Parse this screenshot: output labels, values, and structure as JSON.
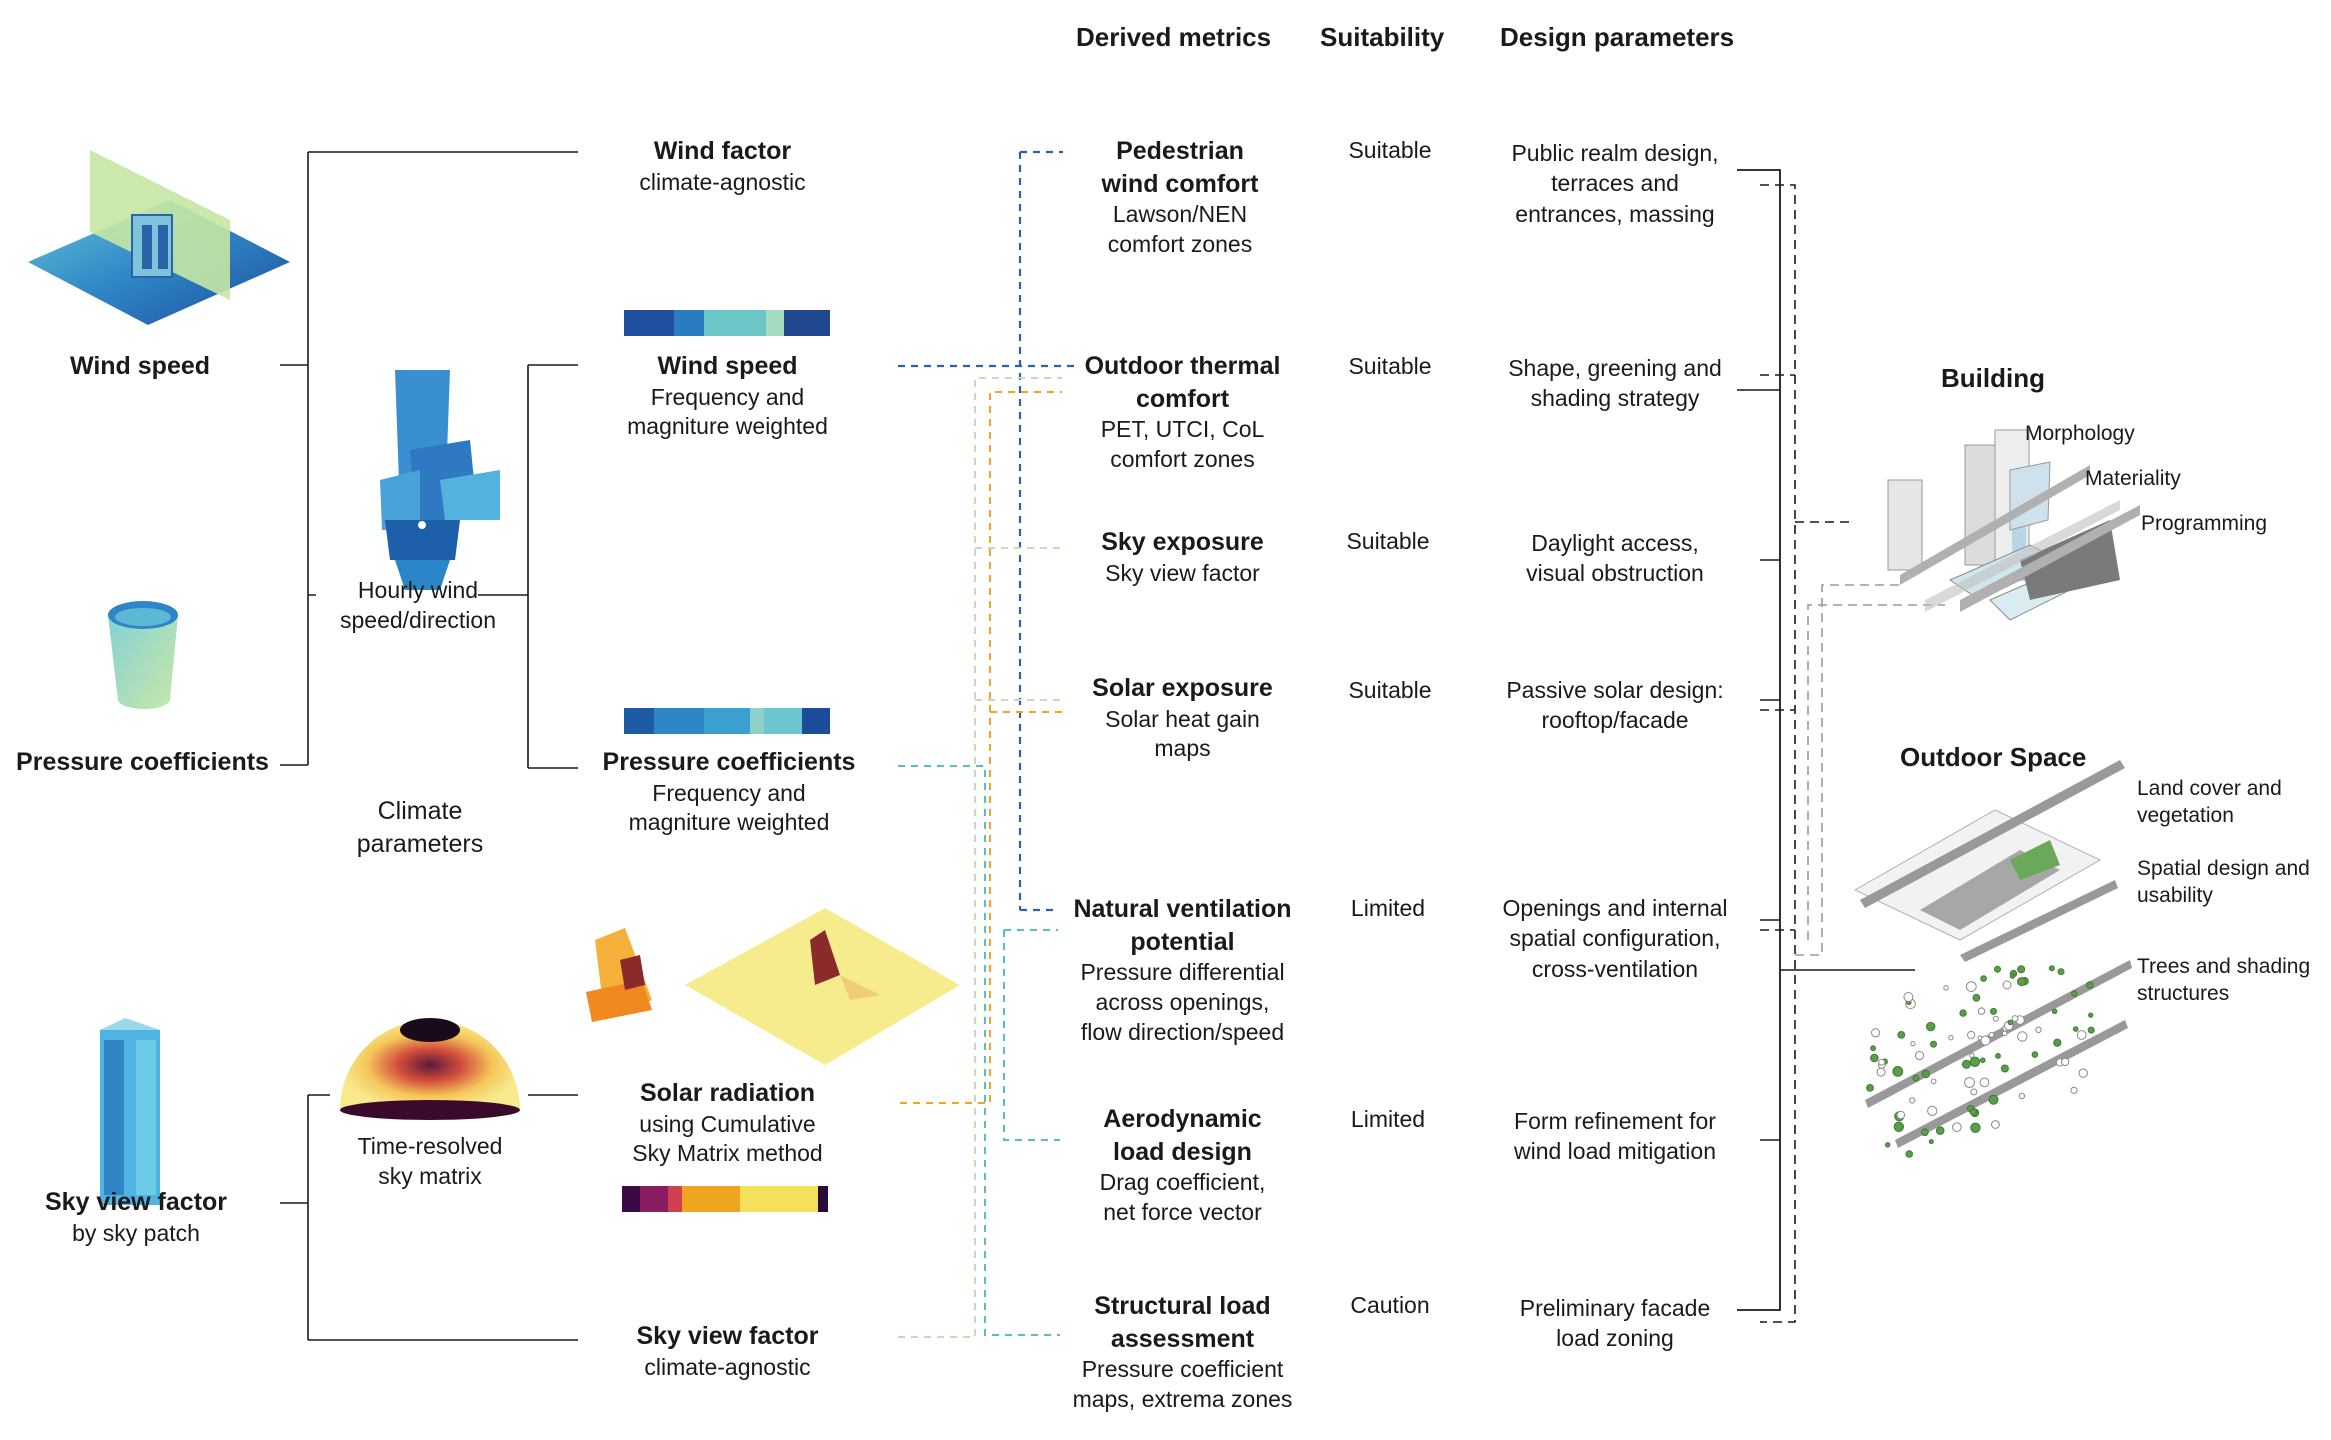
{
  "headers": {
    "derived": "Derived metrics",
    "suitability": "Suitability",
    "design": "Design parameters"
  },
  "inputs": {
    "wind_speed": "Wind speed",
    "pressure": "Pressure coefficients",
    "svf_title": "Sky view factor",
    "svf_sub": "by sky patch",
    "climate_params": "Climate parameters",
    "hourly": "Hourly wind speed/direction",
    "sky_matrix": "Time-resolved sky matrix"
  },
  "intermediates": {
    "wind_factor": {
      "title": "Wind factor",
      "sub": "climate-agnostic"
    },
    "wind_speed": {
      "title": "Wind speed",
      "sub1": "Frequency and",
      "sub2": "magniture weighted"
    },
    "pressure": {
      "title": "Pressure coefficients",
      "sub1": "Frequency and",
      "sub2": "magniture weighted"
    },
    "solar": {
      "title": "Solar radiation",
      "sub1": "using Cumulative",
      "sub2": "Sky Matrix method"
    },
    "svf": {
      "title": "Sky view factor",
      "sub": "climate-agnostic"
    }
  },
  "metrics": [
    {
      "t1": "Pedestrian",
      "t2": "wind comfort",
      "s1": "Lawson/NEN",
      "s2": "comfort zones",
      "s3": "",
      "suit": "Suitable",
      "p1": "Public realm design,",
      "p2": "terraces and",
      "p3": "entrances, massing"
    },
    {
      "t1": "Outdoor thermal",
      "t2": "comfort",
      "s1": "PET, UTCI, CoL",
      "s2": "comfort zones",
      "s3": "",
      "suit": "Suitable",
      "p1": "Shape, greening and",
      "p2": "shading strategy",
      "p3": ""
    },
    {
      "t1": "Sky exposure",
      "t2": "",
      "s1": "Sky view factor",
      "s2": "",
      "s3": "",
      "suit": "Suitable",
      "p1": "Daylight access,",
      "p2": "visual obstruction",
      "p3": ""
    },
    {
      "t1": "Solar exposure",
      "t2": "",
      "s1": "Solar heat gain",
      "s2": "maps",
      "s3": "",
      "suit": "Suitable",
      "p1": "Passive solar design:",
      "p2": "rooftop/facade",
      "p3": ""
    },
    {
      "t1": "Natural ventilation",
      "t2": "potential",
      "s1": "Pressure differential",
      "s2": "across openings,",
      "s3": "flow direction/speed",
      "suit": "Limited",
      "p1": "Openings and internal",
      "p2": "spatial configuration,",
      "p3": "cross-ventilation"
    },
    {
      "t1": "Aerodynamic",
      "t2": "load design",
      "s1": "Drag coefficient,",
      "s2": "net force vector",
      "s3": "",
      "suit": "Limited",
      "p1": "Form refinement for",
      "p2": "wind load mitigation",
      "p3": ""
    },
    {
      "t1": "Structural load",
      "t2": "assessment",
      "s1": "Pressure coefficient",
      "s2": "maps, extrema zones",
      "s3": "",
      "suit": "Caution",
      "p1": "Preliminary facade",
      "p2": "load zoning",
      "p3": ""
    }
  ],
  "building": {
    "title": "Building",
    "labels": [
      "Morphology",
      "Materiality",
      "Programming"
    ]
  },
  "outdoor": {
    "title": "Outdoor Space",
    "labels": [
      "Land cover and vegetation",
      "Spatial design and usability",
      "Trees and shading structures"
    ]
  },
  "colors": {
    "wind_blue": "#2a64a8",
    "pressure_teal": "#5cbcc4",
    "solar_orange": "#f0a520",
    "svf_green": "#c6dcb4",
    "line_black": "#1a1a1a",
    "line_grey": "#9a9a9a"
  }
}
